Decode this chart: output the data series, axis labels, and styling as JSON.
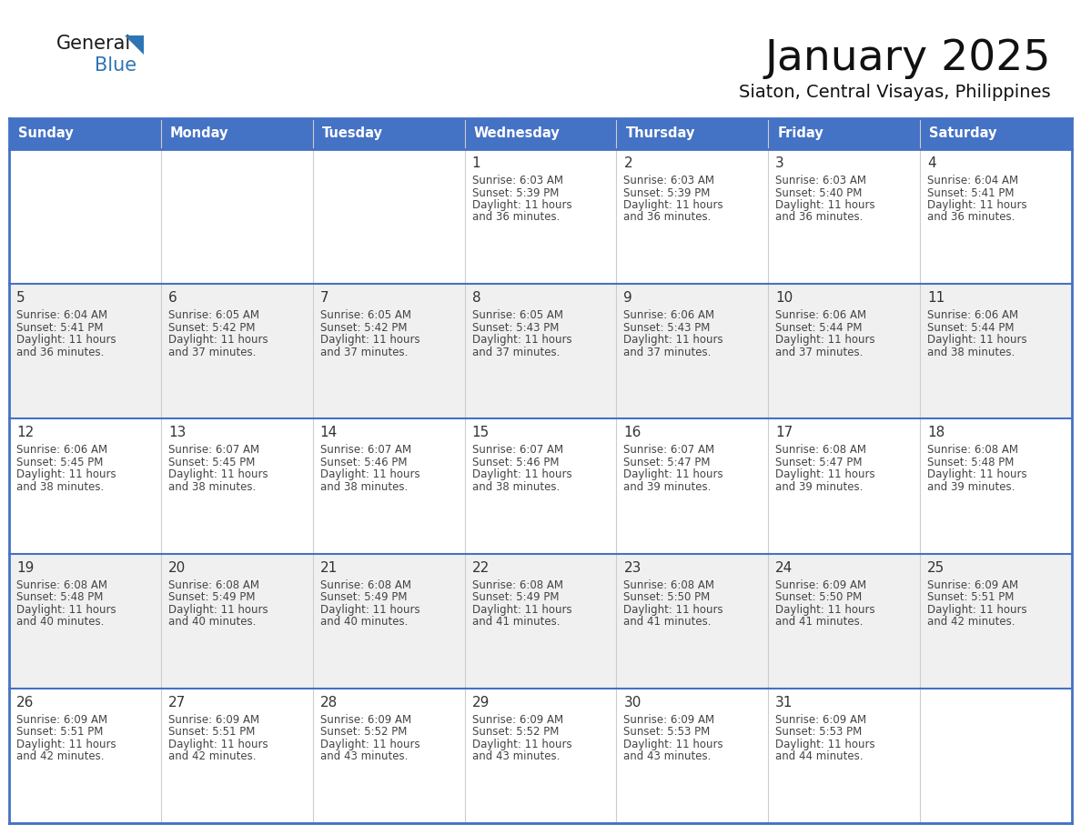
{
  "title": "January 2025",
  "subtitle": "Siaton, Central Visayas, Philippines",
  "days_of_week": [
    "Sunday",
    "Monday",
    "Tuesday",
    "Wednesday",
    "Thursday",
    "Friday",
    "Saturday"
  ],
  "header_bg_color": "#4472C4",
  "header_text_color": "#FFFFFF",
  "row_bg_even": "#FFFFFF",
  "row_bg_odd": "#F0F0F0",
  "border_color": "#4472C4",
  "day_num_color": "#333333",
  "text_color": "#444444",
  "logo_general_color": "#1a1a1a",
  "logo_blue_color": "#2E75B6",
  "logo_triangle_color": "#2E75B6",
  "weeks": [
    [
      {
        "day": null,
        "sunrise": null,
        "sunset": null,
        "daylight_line1": null,
        "daylight_line2": null
      },
      {
        "day": null,
        "sunrise": null,
        "sunset": null,
        "daylight_line1": null,
        "daylight_line2": null
      },
      {
        "day": null,
        "sunrise": null,
        "sunset": null,
        "daylight_line1": null,
        "daylight_line2": null
      },
      {
        "day": 1,
        "sunrise": "6:03 AM",
        "sunset": "5:39 PM",
        "daylight_line1": "Daylight: 11 hours",
        "daylight_line2": "and 36 minutes."
      },
      {
        "day": 2,
        "sunrise": "6:03 AM",
        "sunset": "5:39 PM",
        "daylight_line1": "Daylight: 11 hours",
        "daylight_line2": "and 36 minutes."
      },
      {
        "day": 3,
        "sunrise": "6:03 AM",
        "sunset": "5:40 PM",
        "daylight_line1": "Daylight: 11 hours",
        "daylight_line2": "and 36 minutes."
      },
      {
        "day": 4,
        "sunrise": "6:04 AM",
        "sunset": "5:41 PM",
        "daylight_line1": "Daylight: 11 hours",
        "daylight_line2": "and 36 minutes."
      }
    ],
    [
      {
        "day": 5,
        "sunrise": "6:04 AM",
        "sunset": "5:41 PM",
        "daylight_line1": "Daylight: 11 hours",
        "daylight_line2": "and 36 minutes."
      },
      {
        "day": 6,
        "sunrise": "6:05 AM",
        "sunset": "5:42 PM",
        "daylight_line1": "Daylight: 11 hours",
        "daylight_line2": "and 37 minutes."
      },
      {
        "day": 7,
        "sunrise": "6:05 AM",
        "sunset": "5:42 PM",
        "daylight_line1": "Daylight: 11 hours",
        "daylight_line2": "and 37 minutes."
      },
      {
        "day": 8,
        "sunrise": "6:05 AM",
        "sunset": "5:43 PM",
        "daylight_line1": "Daylight: 11 hours",
        "daylight_line2": "and 37 minutes."
      },
      {
        "day": 9,
        "sunrise": "6:06 AM",
        "sunset": "5:43 PM",
        "daylight_line1": "Daylight: 11 hours",
        "daylight_line2": "and 37 minutes."
      },
      {
        "day": 10,
        "sunrise": "6:06 AM",
        "sunset": "5:44 PM",
        "daylight_line1": "Daylight: 11 hours",
        "daylight_line2": "and 37 minutes."
      },
      {
        "day": 11,
        "sunrise": "6:06 AM",
        "sunset": "5:44 PM",
        "daylight_line1": "Daylight: 11 hours",
        "daylight_line2": "and 38 minutes."
      }
    ],
    [
      {
        "day": 12,
        "sunrise": "6:06 AM",
        "sunset": "5:45 PM",
        "daylight_line1": "Daylight: 11 hours",
        "daylight_line2": "and 38 minutes."
      },
      {
        "day": 13,
        "sunrise": "6:07 AM",
        "sunset": "5:45 PM",
        "daylight_line1": "Daylight: 11 hours",
        "daylight_line2": "and 38 minutes."
      },
      {
        "day": 14,
        "sunrise": "6:07 AM",
        "sunset": "5:46 PM",
        "daylight_line1": "Daylight: 11 hours",
        "daylight_line2": "and 38 minutes."
      },
      {
        "day": 15,
        "sunrise": "6:07 AM",
        "sunset": "5:46 PM",
        "daylight_line1": "Daylight: 11 hours",
        "daylight_line2": "and 38 minutes."
      },
      {
        "day": 16,
        "sunrise": "6:07 AM",
        "sunset": "5:47 PM",
        "daylight_line1": "Daylight: 11 hours",
        "daylight_line2": "and 39 minutes."
      },
      {
        "day": 17,
        "sunrise": "6:08 AM",
        "sunset": "5:47 PM",
        "daylight_line1": "Daylight: 11 hours",
        "daylight_line2": "and 39 minutes."
      },
      {
        "day": 18,
        "sunrise": "6:08 AM",
        "sunset": "5:48 PM",
        "daylight_line1": "Daylight: 11 hours",
        "daylight_line2": "and 39 minutes."
      }
    ],
    [
      {
        "day": 19,
        "sunrise": "6:08 AM",
        "sunset": "5:48 PM",
        "daylight_line1": "Daylight: 11 hours",
        "daylight_line2": "and 40 minutes."
      },
      {
        "day": 20,
        "sunrise": "6:08 AM",
        "sunset": "5:49 PM",
        "daylight_line1": "Daylight: 11 hours",
        "daylight_line2": "and 40 minutes."
      },
      {
        "day": 21,
        "sunrise": "6:08 AM",
        "sunset": "5:49 PM",
        "daylight_line1": "Daylight: 11 hours",
        "daylight_line2": "and 40 minutes."
      },
      {
        "day": 22,
        "sunrise": "6:08 AM",
        "sunset": "5:49 PM",
        "daylight_line1": "Daylight: 11 hours",
        "daylight_line2": "and 41 minutes."
      },
      {
        "day": 23,
        "sunrise": "6:08 AM",
        "sunset": "5:50 PM",
        "daylight_line1": "Daylight: 11 hours",
        "daylight_line2": "and 41 minutes."
      },
      {
        "day": 24,
        "sunrise": "6:09 AM",
        "sunset": "5:50 PM",
        "daylight_line1": "Daylight: 11 hours",
        "daylight_line2": "and 41 minutes."
      },
      {
        "day": 25,
        "sunrise": "6:09 AM",
        "sunset": "5:51 PM",
        "daylight_line1": "Daylight: 11 hours",
        "daylight_line2": "and 42 minutes."
      }
    ],
    [
      {
        "day": 26,
        "sunrise": "6:09 AM",
        "sunset": "5:51 PM",
        "daylight_line1": "Daylight: 11 hours",
        "daylight_line2": "and 42 minutes."
      },
      {
        "day": 27,
        "sunrise": "6:09 AM",
        "sunset": "5:51 PM",
        "daylight_line1": "Daylight: 11 hours",
        "daylight_line2": "and 42 minutes."
      },
      {
        "day": 28,
        "sunrise": "6:09 AM",
        "sunset": "5:52 PM",
        "daylight_line1": "Daylight: 11 hours",
        "daylight_line2": "and 43 minutes."
      },
      {
        "day": 29,
        "sunrise": "6:09 AM",
        "sunset": "5:52 PM",
        "daylight_line1": "Daylight: 11 hours",
        "daylight_line2": "and 43 minutes."
      },
      {
        "day": 30,
        "sunrise": "6:09 AM",
        "sunset": "5:53 PM",
        "daylight_line1": "Daylight: 11 hours",
        "daylight_line2": "and 43 minutes."
      },
      {
        "day": 31,
        "sunrise": "6:09 AM",
        "sunset": "5:53 PM",
        "daylight_line1": "Daylight: 11 hours",
        "daylight_line2": "and 44 minutes."
      },
      {
        "day": null,
        "sunrise": null,
        "sunset": null,
        "daylight_line1": null,
        "daylight_line2": null
      }
    ]
  ]
}
